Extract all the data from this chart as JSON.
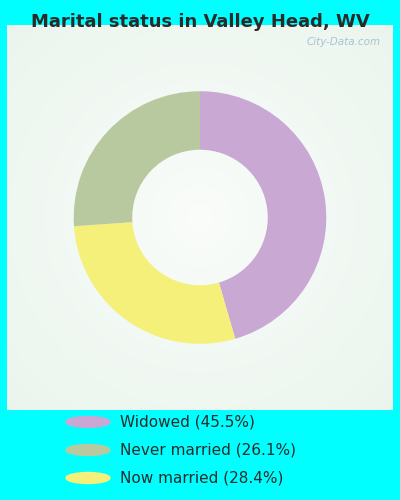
{
  "title": "Marital status in Valley Head, WV",
  "background_color": "#00FFFF",
  "slices": [
    {
      "label": "Widowed (45.5%)",
      "value": 45.5,
      "color": "#c9a8d4"
    },
    {
      "label": "Now married (28.4%)",
      "value": 28.4,
      "color": "#f5f07a"
    },
    {
      "label": "Never married (26.1%)",
      "value": 26.1,
      "color": "#b8c9a0"
    }
  ],
  "startangle": 90,
  "donut_width": 0.38,
  "title_fontsize": 13,
  "legend_fontsize": 11,
  "watermark": "City-Data.com",
  "chart_bg_color": "#e5f3ea",
  "chart_bg_center": "#f0f8f2",
  "legend_order": [
    "Widowed (45.5%)",
    "Never married (26.1%)",
    "Now married (28.4%)"
  ],
  "legend_colors": [
    "#c9a8d4",
    "#b8c9a0",
    "#f5f07a"
  ]
}
